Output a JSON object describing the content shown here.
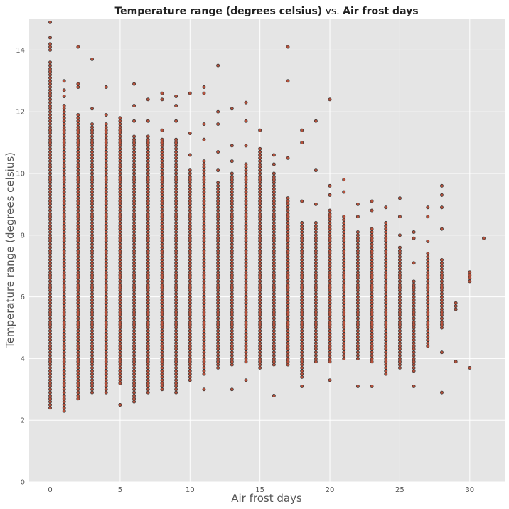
{
  "chart_data": {
    "type": "scatter",
    "title": {
      "part1": "Temperature range (degrees celsius)",
      "connector": " vs. ",
      "part2": "Air frost days"
    },
    "xlabel": "Air frost days",
    "ylabel": "Temperature range (degrees celsius)",
    "xlim": [
      -1.5,
      32.5
    ],
    "ylim": [
      0,
      15
    ],
    "x_ticks": [
      0,
      5,
      10,
      15,
      20,
      25,
      30
    ],
    "y_ticks": [
      0,
      2,
      4,
      6,
      8,
      10,
      12,
      14
    ],
    "grid": true,
    "legend": "none",
    "point_color": "#b5503a",
    "point_edge_color": "#333333",
    "background_color": "#e5e5e5",
    "columns": [
      {
        "x": 0,
        "dense": [
          2.4,
          13.6
        ],
        "extra": [
          14.0,
          14.1,
          14.2,
          14.4,
          14.9
        ]
      },
      {
        "x": 1,
        "dense": [
          2.3,
          12.2
        ],
        "extra": [
          12.5,
          12.7,
          13.0
        ]
      },
      {
        "x": 2,
        "dense": [
          2.7,
          11.9
        ],
        "extra": [
          12.8,
          12.9,
          14.1
        ]
      },
      {
        "x": 3,
        "dense": [
          2.9,
          11.6
        ],
        "extra": [
          12.1,
          13.7
        ]
      },
      {
        "x": 4,
        "dense": [
          2.9,
          11.6
        ],
        "extra": [
          11.9,
          12.8
        ]
      },
      {
        "x": 5,
        "dense": [
          3.2,
          11.8
        ],
        "extra": [
          2.5
        ]
      },
      {
        "x": 6,
        "dense": [
          2.6,
          11.2
        ],
        "extra": [
          11.7,
          12.2,
          12.9
        ]
      },
      {
        "x": 7,
        "dense": [
          2.9,
          11.2
        ],
        "extra": [
          11.7,
          12.4
        ]
      },
      {
        "x": 8,
        "dense": [
          3.0,
          11.1
        ],
        "extra": [
          11.4,
          12.4,
          12.6
        ]
      },
      {
        "x": 9,
        "dense": [
          2.9,
          11.1
        ],
        "extra": [
          11.7,
          12.2,
          12.5
        ]
      },
      {
        "x": 10,
        "dense": [
          3.3,
          10.1
        ],
        "extra": [
          10.6,
          11.3,
          12.6
        ]
      },
      {
        "x": 11,
        "dense": [
          3.5,
          10.4
        ],
        "extra": [
          3.0,
          11.1,
          11.6,
          12.6,
          12.8
        ]
      },
      {
        "x": 12,
        "dense": [
          3.7,
          9.7
        ],
        "extra": [
          10.1,
          10.7,
          11.6,
          12.0,
          13.5
        ]
      },
      {
        "x": 13,
        "dense": [
          3.8,
          10.0
        ],
        "extra": [
          3.0,
          10.4,
          10.9,
          12.1
        ]
      },
      {
        "x": 14,
        "dense": [
          3.9,
          10.3
        ],
        "extra": [
          3.3,
          10.9,
          11.7,
          12.3
        ]
      },
      {
        "x": 15,
        "dense": [
          3.7,
          10.8
        ],
        "extra": [
          11.4
        ]
      },
      {
        "x": 16,
        "dense": [
          3.8,
          10.0
        ],
        "extra": [
          2.8,
          10.3,
          10.6
        ]
      },
      {
        "x": 17,
        "dense": [
          3.8,
          9.2
        ],
        "extra": [
          10.5,
          13.0,
          14.1
        ]
      },
      {
        "x": 18,
        "dense": [
          3.4,
          8.4
        ],
        "extra": [
          3.1,
          9.1,
          11.0,
          11.4
        ]
      },
      {
        "x": 19,
        "dense": [
          3.9,
          8.4
        ],
        "extra": [
          9.0,
          10.1,
          11.7
        ]
      },
      {
        "x": 20,
        "dense": [
          3.9,
          8.8
        ],
        "extra": [
          3.3,
          9.3,
          9.6,
          12.4
        ]
      },
      {
        "x": 21,
        "dense": [
          4.0,
          8.6
        ],
        "extra": [
          9.4,
          9.8
        ]
      },
      {
        "x": 22,
        "dense": [
          4.0,
          8.1
        ],
        "extra": [
          3.1,
          8.6,
          9.0
        ]
      },
      {
        "x": 23,
        "dense": [
          3.9,
          8.2
        ],
        "extra": [
          3.1,
          8.8,
          9.1
        ]
      },
      {
        "x": 24,
        "dense": [
          3.5,
          8.4
        ],
        "extra": [
          8.9
        ]
      },
      {
        "x": 25,
        "dense": [
          3.7,
          7.6
        ],
        "extra": [
          8.0,
          8.6,
          9.2
        ]
      },
      {
        "x": 26,
        "dense": [
          3.6,
          6.5
        ],
        "extra": [
          3.1,
          7.1,
          7.9,
          8.1
        ]
      },
      {
        "x": 27,
        "dense": [
          4.4,
          7.4
        ],
        "extra": [
          7.8,
          8.6,
          8.9
        ]
      },
      {
        "x": 28,
        "dense": [
          5.0,
          7.2
        ],
        "extra": [
          2.9,
          4.2,
          8.2,
          8.9,
          9.3,
          9.6
        ]
      },
      {
        "x": 29,
        "dense": [
          5.6,
          5.8
        ],
        "extra": [
          3.9
        ]
      },
      {
        "x": 30,
        "dense": [
          6.5,
          6.8
        ],
        "extra": [
          3.7
        ]
      },
      {
        "x": 31,
        "dense": [
          7.9,
          7.9
        ],
        "extra": []
      }
    ]
  }
}
